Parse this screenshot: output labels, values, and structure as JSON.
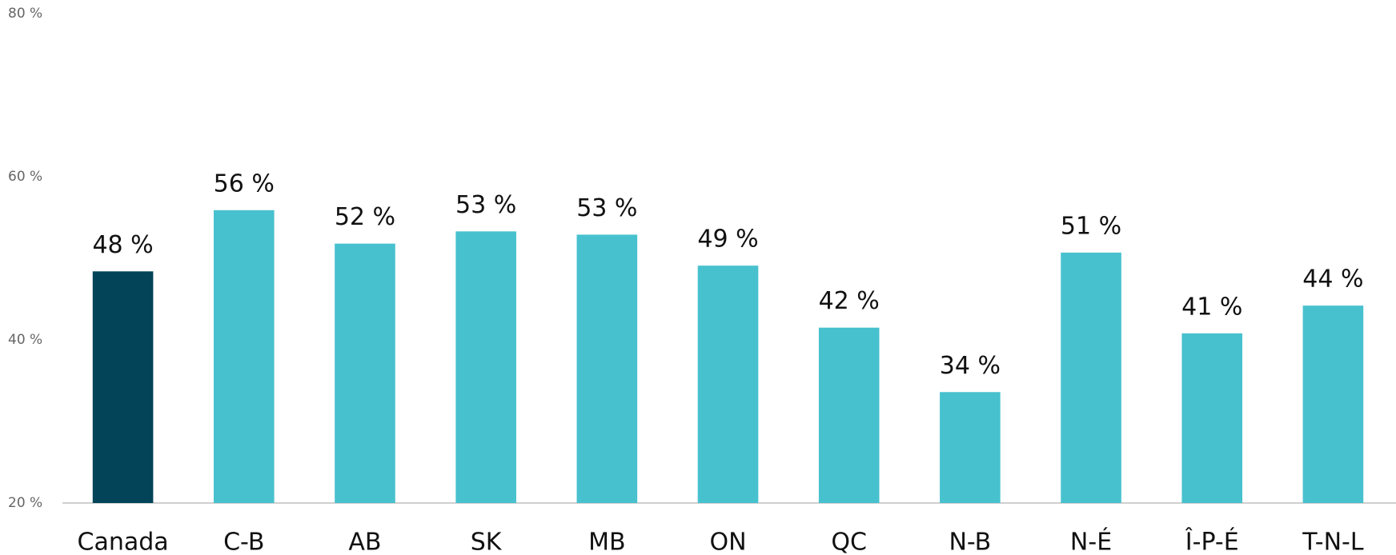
{
  "chart_data": {
    "type": "bar",
    "categories": [
      "Canada",
      "C-B",
      "AB",
      "SK",
      "MB",
      "ON",
      "QC",
      "N-B",
      "N-É",
      "Î-P-É",
      "T-N-L"
    ],
    "values": [
      48.4,
      55.9,
      51.8,
      53.3,
      52.9,
      49.1,
      41.5,
      33.6,
      50.7,
      40.8,
      44.2
    ],
    "value_labels": [
      "48 %",
      "56 %",
      "52 %",
      "53 %",
      "53 %",
      "49 %",
      "42 %",
      "34 %",
      "51 %",
      "41 %",
      "44 %"
    ],
    "colors": [
      "#034459",
      "#47c1ce",
      "#47c1ce",
      "#47c1ce",
      "#47c1ce",
      "#47c1ce",
      "#47c1ce",
      "#47c1ce",
      "#47c1ce",
      "#47c1ce",
      "#47c1ce"
    ],
    "ylim": [
      20,
      80
    ],
    "yticks": [
      {
        "value": 20,
        "label": "20 %"
      },
      {
        "value": 40,
        "label": "40 %"
      },
      {
        "value": 60,
        "label": "60 %"
      },
      {
        "value": 80,
        "label": "80 %"
      }
    ],
    "grid": false
  }
}
